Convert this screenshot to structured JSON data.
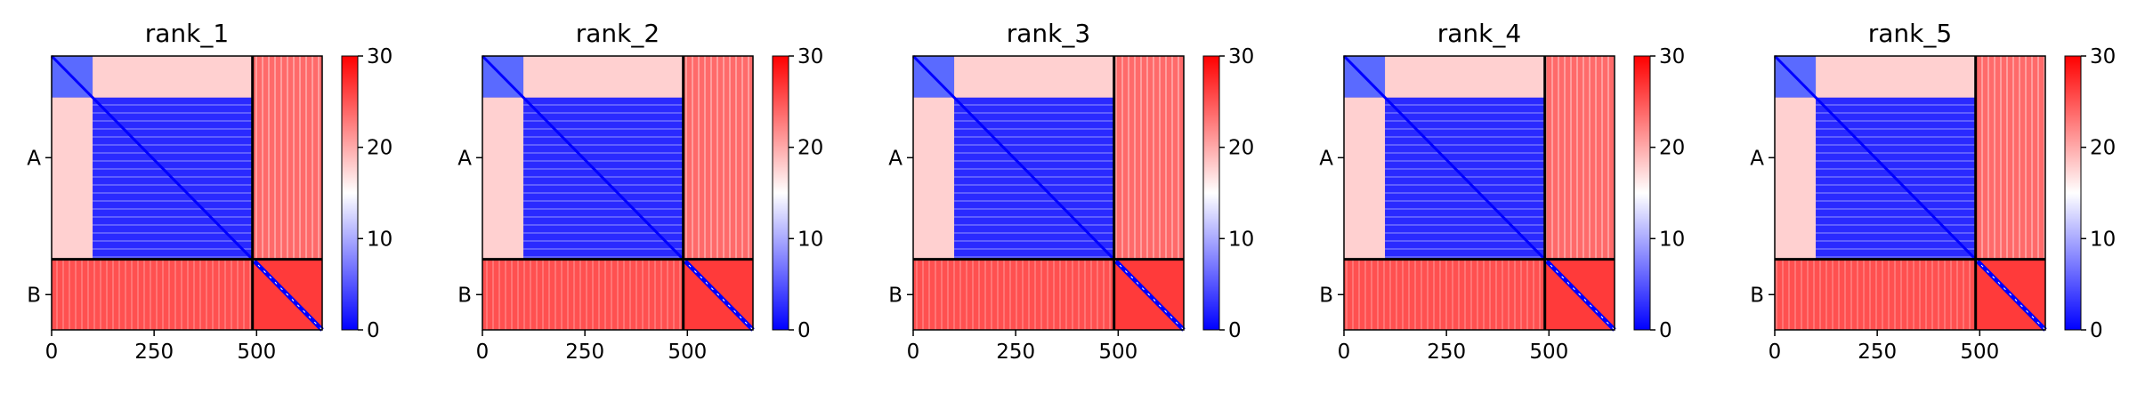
{
  "figure": {
    "background": "#ffffff"
  },
  "chart_data": {
    "type": "heatmap",
    "colormap": {
      "name": "bwr",
      "low": "#0000ff",
      "mid": "#ffffff",
      "high": "#ff0000"
    },
    "color_range": [
      0,
      30
    ],
    "colorbar_ticks": [
      "0",
      "10",
      "20",
      "30"
    ],
    "x_range": [
      0,
      660
    ],
    "x_ticks": [
      0,
      250,
      500
    ],
    "x_tick_labels": [
      "0",
      "250",
      "500"
    ],
    "chain_boundary": 490,
    "y_tick_labels": [
      "A",
      "B"
    ],
    "panels": [
      {
        "title": "rank_1"
      },
      {
        "title": "rank_2"
      },
      {
        "title": "rank_3"
      },
      {
        "title": "rank_4"
      },
      {
        "title": "rank_5"
      }
    ]
  }
}
